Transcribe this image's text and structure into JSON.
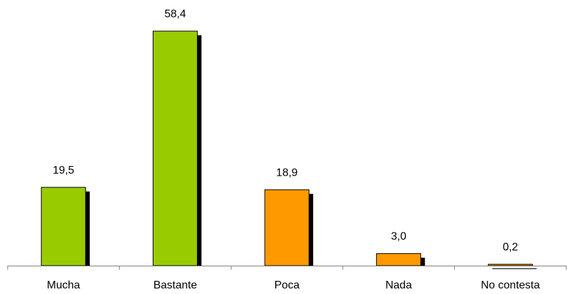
{
  "chart_data": {
    "type": "bar",
    "title": "",
    "xlabel": "",
    "ylabel": "",
    "categories": [
      "Mucha",
      "Bastante",
      "Poca",
      "Nada",
      "No contesta"
    ],
    "values": [
      19.5,
      58.4,
      18.9,
      3.0,
      0.2
    ],
    "value_labels": [
      "19,5",
      "58,4",
      "18,9",
      "3,0",
      "0,2"
    ],
    "bar_colors": [
      "#99CC00",
      "#99CC00",
      "#FF9900",
      "#FF9900",
      "#FF9900"
    ],
    "shadow_color": "#000000",
    "ylim": [
      0,
      58.4
    ],
    "grid": false,
    "legend": "none"
  }
}
